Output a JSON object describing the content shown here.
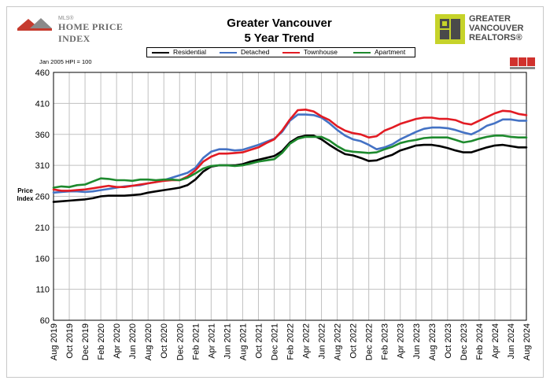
{
  "header": {
    "title_line1": "Greater Vancouver",
    "title_line2": "5 Year Trend",
    "left_logo_small": "MLS®",
    "left_logo_text": "HOME PRICE INDEX",
    "right_logo_line1": "GREATER",
    "right_logo_line2": "VANCOUVER",
    "right_logo_line3": "REALTORS®"
  },
  "note": "Jan 2005 HPI = 100",
  "mls_badge": "MLS",
  "colors": {
    "residential": "#000000",
    "detached": "#4472c4",
    "townhouse": "#e21b23",
    "apartment": "#1e8a2e",
    "grid": "#c0c0c0",
    "right_logo": "#c6d32a"
  },
  "chart_data": {
    "type": "line",
    "ylabel": "Price Index",
    "ylim": [
      60,
      460
    ],
    "yticks": [
      460,
      410,
      360,
      310,
      260,
      210,
      160,
      110,
      60
    ],
    "x_tick_labels": [
      "Aug 2019",
      "Oct 2019",
      "Dec 2019",
      "Feb 2020",
      "Apr 2020",
      "Jun 2020",
      "Aug 2020",
      "Oct 2020",
      "Dec 2020",
      "Feb 2021",
      "Apr 2021",
      "Jun 2021",
      "Aug 2021",
      "Oct 2021",
      "Dec 2021",
      "Feb 2022",
      "Apr 2022",
      "Jun 2022",
      "Aug 2022",
      "Oct 2022",
      "Dec 2022",
      "Feb 2023",
      "Apr 2023",
      "Jun 2023",
      "Aug 2023",
      "Oct 2023",
      "Dec 2023",
      "Feb 2024",
      "Apr 2024",
      "Jun 2024",
      "Aug 2024"
    ],
    "x": [
      "Aug 2019",
      "Sep 2019",
      "Oct 2019",
      "Nov 2019",
      "Dec 2019",
      "Jan 2020",
      "Feb 2020",
      "Mar 2020",
      "Apr 2020",
      "May 2020",
      "Jun 2020",
      "Jul 2020",
      "Aug 2020",
      "Sep 2020",
      "Oct 2020",
      "Nov 2020",
      "Dec 2020",
      "Jan 2021",
      "Feb 2021",
      "Mar 2021",
      "Apr 2021",
      "May 2021",
      "Jun 2021",
      "Jul 2021",
      "Aug 2021",
      "Sep 2021",
      "Oct 2021",
      "Nov 2021",
      "Dec 2021",
      "Jan 2022",
      "Feb 2022",
      "Mar 2022",
      "Apr 2022",
      "May 2022",
      "Jun 2022",
      "Jul 2022",
      "Aug 2022",
      "Sep 2022",
      "Oct 2022",
      "Nov 2022",
      "Dec 2022",
      "Jan 2023",
      "Feb 2023",
      "Mar 2023",
      "Apr 2023",
      "May 2023",
      "Jun 2023",
      "Jul 2023",
      "Aug 2023",
      "Sep 2023",
      "Oct 2023",
      "Nov 2023",
      "Dec 2023",
      "Jan 2024",
      "Feb 2024",
      "Mar 2024",
      "Apr 2024",
      "May 2024",
      "Jun 2024",
      "Jul 2024",
      "Aug 2024"
    ],
    "series": [
      {
        "name": "Residential",
        "key": "residential",
        "values": [
          251,
          252,
          253,
          254,
          255,
          257,
          260,
          261,
          261,
          261,
          262,
          263,
          266,
          268,
          270,
          272,
          274,
          278,
          287,
          300,
          308,
          310,
          310,
          310,
          312,
          316,
          319,
          322,
          325,
          333,
          347,
          355,
          358,
          358,
          352,
          343,
          335,
          328,
          326,
          322,
          317,
          318,
          323,
          327,
          334,
          338,
          342,
          343,
          343,
          341,
          338,
          334,
          331,
          331,
          335,
          339,
          342,
          343,
          341,
          339,
          339
        ]
      },
      {
        "name": "Detached",
        "key": "detached",
        "values": [
          266,
          267,
          268,
          268,
          267,
          268,
          270,
          272,
          274,
          276,
          277,
          278,
          281,
          283,
          286,
          290,
          294,
          298,
          306,
          322,
          332,
          336,
          336,
          334,
          335,
          339,
          343,
          348,
          353,
          364,
          382,
          392,
          392,
          391,
          387,
          378,
          367,
          358,
          352,
          349,
          343,
          336,
          339,
          344,
          352,
          358,
          364,
          369,
          371,
          371,
          370,
          367,
          363,
          360,
          366,
          374,
          378,
          384,
          384,
          382,
          382
        ]
      },
      {
        "name": "Townhouse",
        "key": "townhouse",
        "values": [
          271,
          269,
          269,
          270,
          271,
          273,
          275,
          277,
          275,
          275,
          277,
          279,
          281,
          283,
          285,
          286,
          286,
          292,
          302,
          316,
          324,
          329,
          329,
          330,
          331,
          335,
          339,
          346,
          352,
          366,
          384,
          399,
          400,
          397,
          389,
          383,
          373,
          366,
          362,
          360,
          355,
          357,
          366,
          371,
          377,
          381,
          385,
          387,
          387,
          385,
          385,
          383,
          378,
          376,
          382,
          388,
          394,
          398,
          397,
          393,
          391
        ]
      },
      {
        "name": "Apartment",
        "key": "apartment",
        "values": [
          274,
          276,
          275,
          278,
          279,
          284,
          289,
          288,
          286,
          286,
          285,
          287,
          287,
          286,
          287,
          287,
          286,
          290,
          297,
          305,
          309,
          310,
          310,
          309,
          310,
          313,
          316,
          318,
          320,
          330,
          345,
          353,
          356,
          356,
          356,
          350,
          341,
          334,
          332,
          331,
          330,
          331,
          336,
          340,
          346,
          349,
          351,
          354,
          355,
          355,
          355,
          351,
          347,
          349,
          353,
          356,
          358,
          358,
          356,
          355,
          355
        ]
      }
    ]
  }
}
